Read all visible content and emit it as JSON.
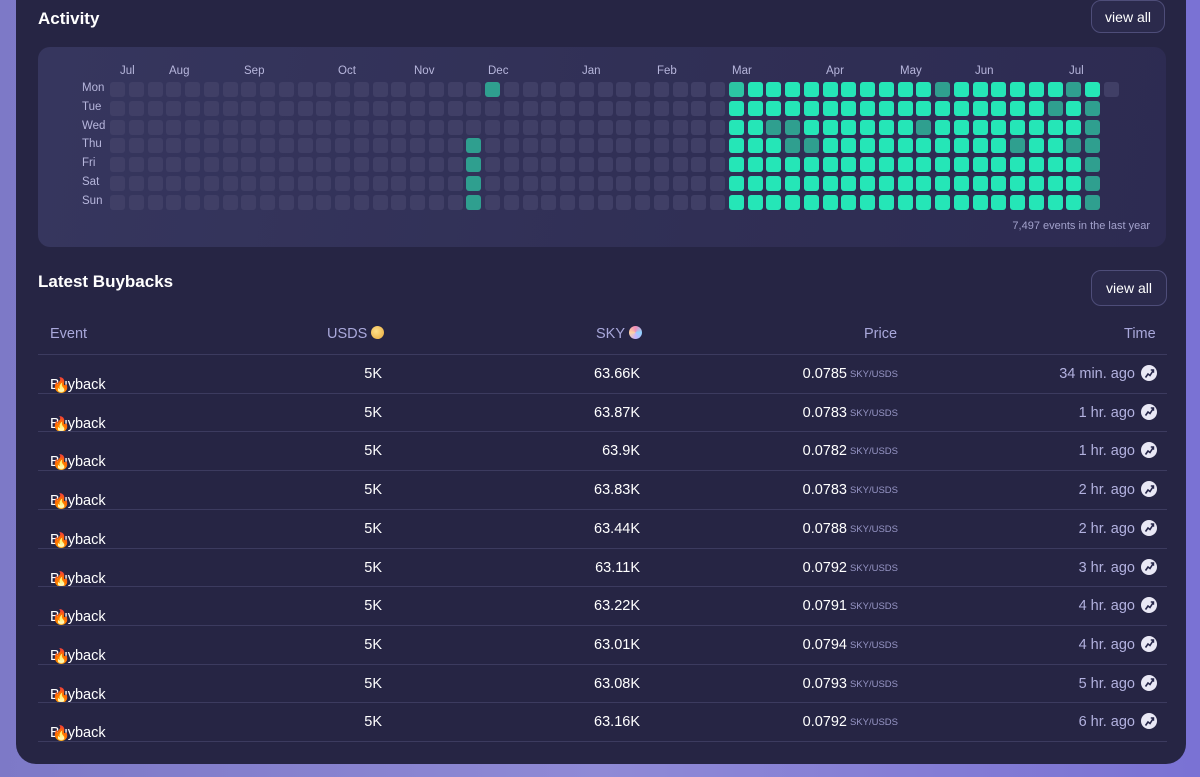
{
  "activity": {
    "title": "Activity",
    "view_all": "view all",
    "months": [
      "Jul",
      "Aug",
      "Sep",
      "Oct",
      "Nov",
      "Dec",
      "Jan",
      "Feb",
      "Mar",
      "Apr",
      "May",
      "Jun",
      "Jul"
    ],
    "days": [
      "Mon",
      "Tue",
      "Wed",
      "Thu",
      "Fri",
      "Sat",
      "Sun"
    ],
    "total": "7,497 events in the last year",
    "colors": {
      "empty": "#403f66",
      "low": "#2f9f8f",
      "mid": "#2cc5a3",
      "high": "#25e6b7"
    }
  },
  "buybacks": {
    "title": "Latest Buybacks",
    "view_all": "view all",
    "headers": {
      "event": "Event",
      "usds": "USDS",
      "sky": "SKY",
      "price": "Price",
      "time": "Time"
    },
    "pair_label": "SKY/USDS",
    "rows": [
      {
        "event": "Buyback",
        "usds": "5K",
        "sky": "63.66K",
        "price": "0.0785",
        "time": "34 min. ago"
      },
      {
        "event": "Buyback",
        "usds": "5K",
        "sky": "63.87K",
        "price": "0.0783",
        "time": "1 hr. ago"
      },
      {
        "event": "Buyback",
        "usds": "5K",
        "sky": "63.9K",
        "price": "0.0782",
        "time": "1 hr. ago"
      },
      {
        "event": "Buyback",
        "usds": "5K",
        "sky": "63.83K",
        "price": "0.0783",
        "time": "2 hr. ago"
      },
      {
        "event": "Buyback",
        "usds": "5K",
        "sky": "63.44K",
        "price": "0.0788",
        "time": "2 hr. ago"
      },
      {
        "event": "Buyback",
        "usds": "5K",
        "sky": "63.11K",
        "price": "0.0792",
        "time": "3 hr. ago"
      },
      {
        "event": "Buyback",
        "usds": "5K",
        "sky": "63.22K",
        "price": "0.0791",
        "time": "4 hr. ago"
      },
      {
        "event": "Buyback",
        "usds": "5K",
        "sky": "63.01K",
        "price": "0.0794",
        "time": "4 hr. ago"
      },
      {
        "event": "Buyback",
        "usds": "5K",
        "sky": "63.08K",
        "price": "0.0793",
        "time": "5 hr. ago"
      },
      {
        "event": "Buyback",
        "usds": "5K",
        "sky": "63.16K",
        "price": "0.0792",
        "time": "6 hr. ago"
      }
    ]
  }
}
